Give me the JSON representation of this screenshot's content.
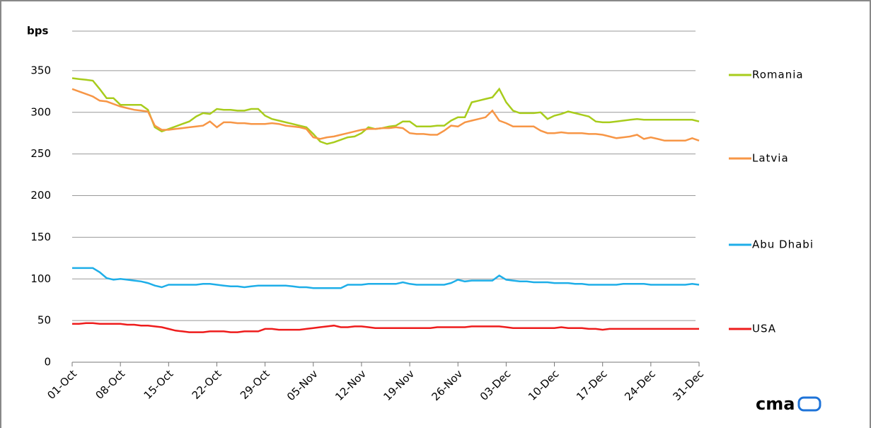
{
  "chart_data": {
    "type": "line",
    "y_label": "bps",
    "logo": "cma",
    "categories": [
      "01-Oct",
      null,
      null,
      null,
      null,
      null,
      null,
      "08-Oct",
      null,
      null,
      null,
      null,
      null,
      null,
      "15-Oct",
      null,
      null,
      null,
      null,
      null,
      null,
      "22-Oct",
      null,
      null,
      null,
      null,
      null,
      null,
      "29-Oct",
      null,
      null,
      null,
      null,
      null,
      null,
      "05-Nov",
      null,
      null,
      null,
      null,
      null,
      null,
      "12-Nov",
      null,
      null,
      null,
      null,
      null,
      null,
      "19-Nov",
      null,
      null,
      null,
      null,
      null,
      null,
      "26-Nov",
      null,
      null,
      null,
      null,
      null,
      null,
      "03-Dec",
      null,
      null,
      null,
      null,
      null,
      null,
      "10-Dec",
      null,
      null,
      null,
      null,
      null,
      null,
      "17-Dec",
      null,
      null,
      null,
      null,
      null,
      null,
      "24-Dec",
      null,
      null,
      null,
      null,
      null,
      null,
      "31-Dec"
    ],
    "series": [
      {
        "name": "Romania",
        "color": "#a8cc1c",
        "values": [
          341,
          340,
          339,
          338,
          328,
          317,
          317,
          309,
          309,
          309,
          309,
          303,
          282,
          277,
          280,
          283,
          286,
          289,
          295,
          299,
          298,
          304,
          303,
          303,
          302,
          302,
          304,
          304,
          296,
          292,
          290,
          288,
          286,
          284,
          282,
          274,
          265,
          262,
          264,
          267,
          270,
          271,
          275,
          282,
          280,
          281,
          283,
          284,
          289,
          289,
          283,
          283,
          283,
          284,
          284,
          290,
          294,
          294,
          312,
          314,
          316,
          318,
          328,
          312,
          302,
          299,
          299,
          299,
          300,
          292,
          296,
          298,
          301,
          299,
          297,
          295,
          289,
          288,
          288,
          289,
          290,
          291,
          292,
          291,
          291,
          291,
          291,
          291,
          291,
          291,
          291,
          289
        ]
      },
      {
        "name": "Latvia",
        "color": "#f79646",
        "values": [
          328,
          325,
          322,
          319,
          314,
          313,
          310,
          307,
          305,
          303,
          302,
          301,
          284,
          279,
          279,
          280,
          281,
          282,
          283,
          284,
          289,
          282,
          288,
          288,
          287,
          287,
          286,
          286,
          286,
          287,
          286,
          284,
          283,
          282,
          280,
          270,
          268,
          270,
          271,
          273,
          275,
          277,
          279,
          280,
          280,
          281,
          281,
          282,
          281,
          275,
          274,
          274,
          273,
          273,
          278,
          284,
          283,
          288,
          290,
          292,
          294,
          302,
          290,
          287,
          283,
          283,
          283,
          283,
          278,
          275,
          275,
          276,
          275,
          275,
          275,
          274,
          274,
          273,
          271,
          269,
          270,
          271,
          273,
          268,
          270,
          268,
          266,
          266,
          266,
          266,
          269,
          266
        ]
      },
      {
        "name": "Abu Dhabi",
        "color": "#1eaee8",
        "values": [
          113,
          113,
          113,
          113,
          108,
          101,
          99,
          100,
          99,
          98,
          97,
          95,
          92,
          90,
          93,
          93,
          93,
          93,
          93,
          94,
          94,
          93,
          92,
          91,
          91,
          90,
          91,
          92,
          92,
          92,
          92,
          92,
          91,
          90,
          90,
          89,
          89,
          89,
          89,
          89,
          93,
          93,
          93,
          94,
          94,
          94,
          94,
          94,
          96,
          94,
          93,
          93,
          93,
          93,
          93,
          95,
          99,
          97,
          98,
          98,
          98,
          98,
          104,
          99,
          98,
          97,
          97,
          96,
          96,
          96,
          95,
          95,
          95,
          94,
          94,
          93,
          93,
          93,
          93,
          93,
          94,
          94,
          94,
          94,
          93,
          93,
          93,
          93,
          93,
          93,
          94,
          93
        ]
      },
      {
        "name": "USA",
        "color": "#ee1c1c",
        "values": [
          46,
          46,
          47,
          47,
          46,
          46,
          46,
          46,
          45,
          45,
          44,
          44,
          43,
          42,
          40,
          38,
          37,
          36,
          36,
          36,
          37,
          37,
          37,
          36,
          36,
          37,
          37,
          37,
          40,
          40,
          39,
          39,
          39,
          39,
          40,
          41,
          42,
          43,
          44,
          42,
          42,
          43,
          43,
          42,
          41,
          41,
          41,
          41,
          41,
          41,
          41,
          41,
          41,
          42,
          42,
          42,
          42,
          42,
          43,
          43,
          43,
          43,
          43,
          42,
          41,
          41,
          41,
          41,
          41,
          41,
          41,
          42,
          41,
          41,
          41,
          40,
          40,
          39,
          40,
          40,
          40,
          40,
          40,
          40,
          40,
          40,
          40,
          40,
          40,
          40,
          40,
          40
        ]
      }
    ],
    "ylim": [
      0,
      400
    ],
    "yticks": [
      0,
      50,
      100,
      150,
      200,
      250,
      300,
      350
    ],
    "grid": true,
    "legend": "right"
  }
}
